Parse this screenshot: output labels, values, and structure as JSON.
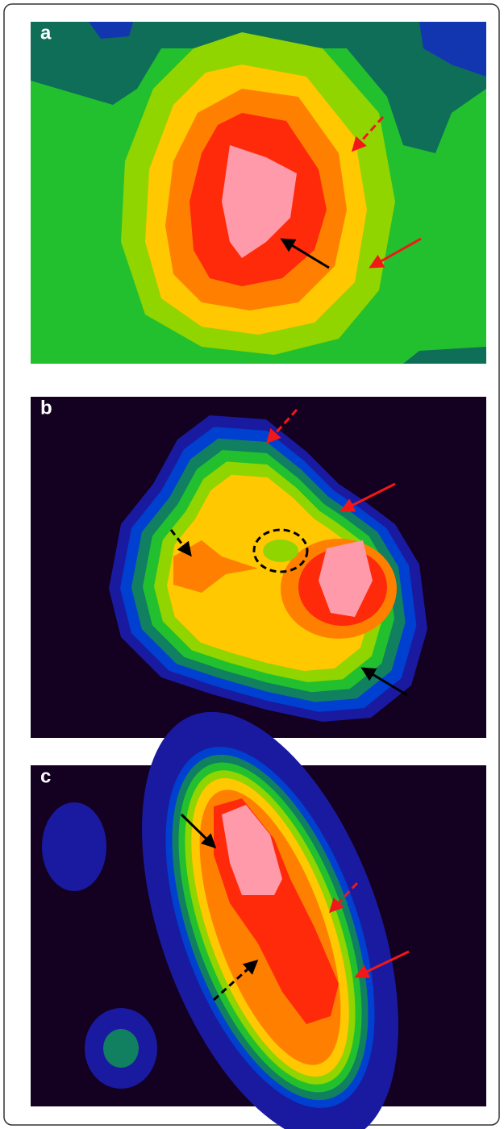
{
  "panels": [
    {
      "label": "a"
    },
    {
      "label": "b"
    },
    {
      "label": "c"
    }
  ]
}
